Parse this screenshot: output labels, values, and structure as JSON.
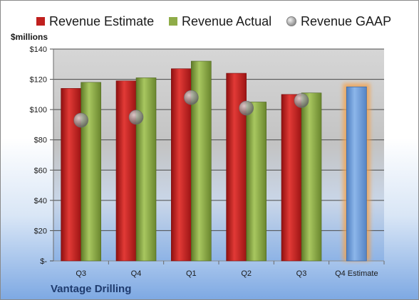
{
  "company": "Vantage Drilling",
  "unit_label": "$millions",
  "chart_data": {
    "type": "bar",
    "categories": [
      "Q3",
      "Q4",
      "Q1",
      "Q2",
      "Q3",
      "Q4 Estimate"
    ],
    "series": [
      {
        "name": "Revenue Estimate",
        "kind": "bar",
        "color": "#c0201e",
        "values": [
          114,
          119,
          127,
          124,
          110,
          null
        ]
      },
      {
        "name": "Revenue Actual",
        "kind": "bar",
        "color": "#8fac48",
        "values": [
          118,
          121,
          132,
          105,
          111,
          115
        ]
      },
      {
        "name": "Revenue GAAP",
        "kind": "bubble",
        "color": "#9a9a9a",
        "values": [
          93,
          95,
          108,
          101,
          106,
          null
        ]
      }
    ],
    "highlight": {
      "category": "Q4 Estimate",
      "color": "#6d9bd6",
      "glow": "#f5a34b"
    },
    "ylim": [
      0,
      140
    ],
    "yticks": [
      0,
      20,
      40,
      60,
      80,
      100,
      120,
      140
    ],
    "ytick_labels": [
      "$-",
      "$20",
      "$40",
      "$60",
      "$80",
      "$100",
      "$120",
      "$140"
    ],
    "grid": true,
    "legend_position": "top"
  }
}
